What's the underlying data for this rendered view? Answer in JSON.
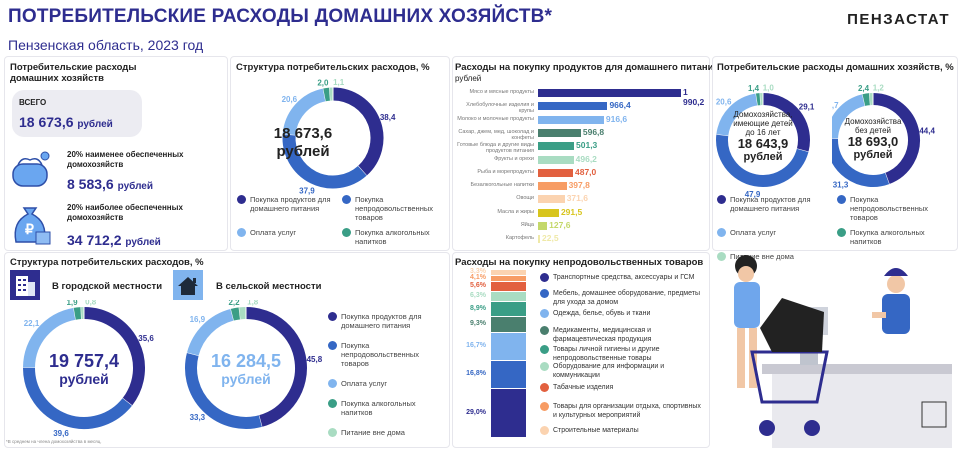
{
  "header": {
    "title": "ПОТРЕБИТЕЛЬСКИЕ РАСХОДЫ ДОМАШНИХ ХОЗЯЙСТВ*",
    "subtitle": "Пензенская область, 2023 год",
    "logo": "ПЕНЗАСТАТ"
  },
  "colors": {
    "food": "#2e2d8f",
    "nonfood": "#3567c4",
    "services": "#80b4ee",
    "alcohol": "#3a9e86",
    "outside": "#a9dcc2"
  },
  "legend": [
    "Покупка продуктов для домашнего питания",
    "Покупка непродовольственных товаров",
    "Оплата услуг",
    "Покупка алкогольных напитков",
    "Питание вне дома"
  ],
  "summary": {
    "heading": "Потребительские расходы домашних хозяйств",
    "total_label": "ВСЕГО",
    "total_value": "18 673,6",
    "unit": "рублей",
    "poor_label": "20% наименее обеспеченных домохозяйств",
    "poor_value": "8 583,6",
    "rich_label": "20% наиболее обеспеченных домохозяйств",
    "rich_value": "34 712,2"
  },
  "chart_data": [
    {
      "id": "structure",
      "type": "pie",
      "title": "Структура потребительских расходов, %",
      "center_value": "18 673,6",
      "center_unit": "рублей",
      "values": [
        38.4,
        37.9,
        20.6,
        2.0,
        1.1
      ],
      "labels": [
        "38,4",
        "37,9",
        "20,6",
        "2,0",
        "1,1"
      ]
    },
    {
      "id": "with_kids",
      "type": "pie",
      "title": "Потребительские расходы домашних хозяйств, %",
      "center_label": "Домохозяйства, имеющие детей до 16 лет",
      "center_value": "18 643,9",
      "center_unit": "рублей",
      "values": [
        29.1,
        47.9,
        20.6,
        1.4,
        1.0
      ],
      "labels": [
        "29,1",
        "47,9",
        "20,6",
        "1,4",
        "1,0"
      ]
    },
    {
      "id": "no_kids",
      "type": "pie",
      "center_label": "Домохозяйства без детей",
      "center_value": "18 693,0",
      "center_unit": "рублей",
      "values": [
        44.4,
        31.3,
        20.7,
        2.4,
        1.2
      ],
      "labels": [
        "44,4",
        "31,3",
        "20,7",
        "2,4",
        "1,2"
      ]
    },
    {
      "id": "urban",
      "type": "pie",
      "title": "Структура потребительских расходов, %",
      "caption": "В городской местности",
      "center_value": "19 757,4",
      "center_unit": "рублей",
      "values": [
        35.6,
        39.6,
        22.1,
        1.9,
        0.8
      ],
      "labels": [
        "35,6",
        "39,6",
        "22,1",
        "1,9",
        "0,8"
      ]
    },
    {
      "id": "rural",
      "type": "pie",
      "caption": "В сельской местности",
      "center_value": "16 284,5",
      "center_unit": "рублей",
      "values": [
        45.8,
        33.3,
        16.9,
        2.2,
        1.8
      ],
      "labels": [
        "45,8",
        "33,3",
        "16,9",
        "2,2",
        "1,8"
      ]
    },
    {
      "id": "food_bars",
      "type": "bar",
      "title": "Расходы на покупку продуктов для домашнего питания,",
      "unit": "рублей",
      "categories": [
        "Мясо и мясные продукты",
        "Хлебобулочные изделия и крупы",
        "Молоко и молочные продукты",
        "Сахар, джем, мед, шоколад и конфеты",
        "Готовые блюда и другие виды продуктов питания",
        "Фрукты и орехи",
        "Рыба и морепродукты",
        "Безалкогольные напитки",
        "Овощи",
        "Масла и жиры",
        "Яйца",
        "Картофель"
      ],
      "values": [
        1990.2,
        966.4,
        916.6,
        596.8,
        501.3,
        496.2,
        487.0,
        397.8,
        371.6,
        291.5,
        127.6,
        22.5
      ],
      "labels": [
        "1 990,2",
        "966,4",
        "916,6",
        "596,8",
        "501,3",
        "496,2",
        "487,0",
        "397,8",
        "371,6",
        "291,5",
        "127,6",
        "22,5"
      ],
      "colors": [
        "#2e2d8f",
        "#3567c4",
        "#80b4ee",
        "#4a7f6e",
        "#3a9e86",
        "#a9dcc2",
        "#e2603f",
        "#f79c64",
        "#fbd3b0",
        "#d8c51d",
        "#c4d86a",
        "#efe9a8"
      ]
    },
    {
      "id": "nonfood_stack",
      "type": "bar",
      "title": "Расходы на покупку непродовольственных товаров",
      "categories": [
        "Транспортные средства, аксессуары и ГСМ",
        "Мебель, домашнее оборудование, предметы для ухода за домом",
        "Одежда, белье, обувь и ткани",
        "Медикаменты, медицинская и фармацевтическая продукция",
        "Товары личной гигиены и другие непродовольственные товары",
        "Оборудование для информации и коммуникации",
        "Табачные изделия",
        "Товары для организации отдыха, спортивных и культурных мероприятий",
        "Строительные материалы"
      ],
      "values": [
        29.0,
        16.8,
        16.7,
        9.3,
        8.9,
        6.3,
        5.6,
        4.1,
        3.3
      ],
      "labels": [
        "29,0%",
        "16,8%",
        "16,7%",
        "9,3%",
        "8,9%",
        "6,3%",
        "5,6%",
        "4,1%",
        "3,3%"
      ],
      "colors": [
        "#2e2d8f",
        "#3567c4",
        "#80b4ee",
        "#4a7f6e",
        "#3a9e86",
        "#a9dcc2",
        "#e2603f",
        "#f79c64",
        "#fbd3b0"
      ]
    }
  ],
  "footnote": "*В среднем на члена домохозяйства в месяц."
}
